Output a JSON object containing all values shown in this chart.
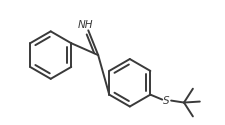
{
  "bg_color": "#ffffff",
  "line_color": "#3a3a3a",
  "line_width": 1.4,
  "figsize": [
    2.26,
    1.25
  ],
  "dpi": 100,
  "nh_label": "NH",
  "s_label": "S"
}
